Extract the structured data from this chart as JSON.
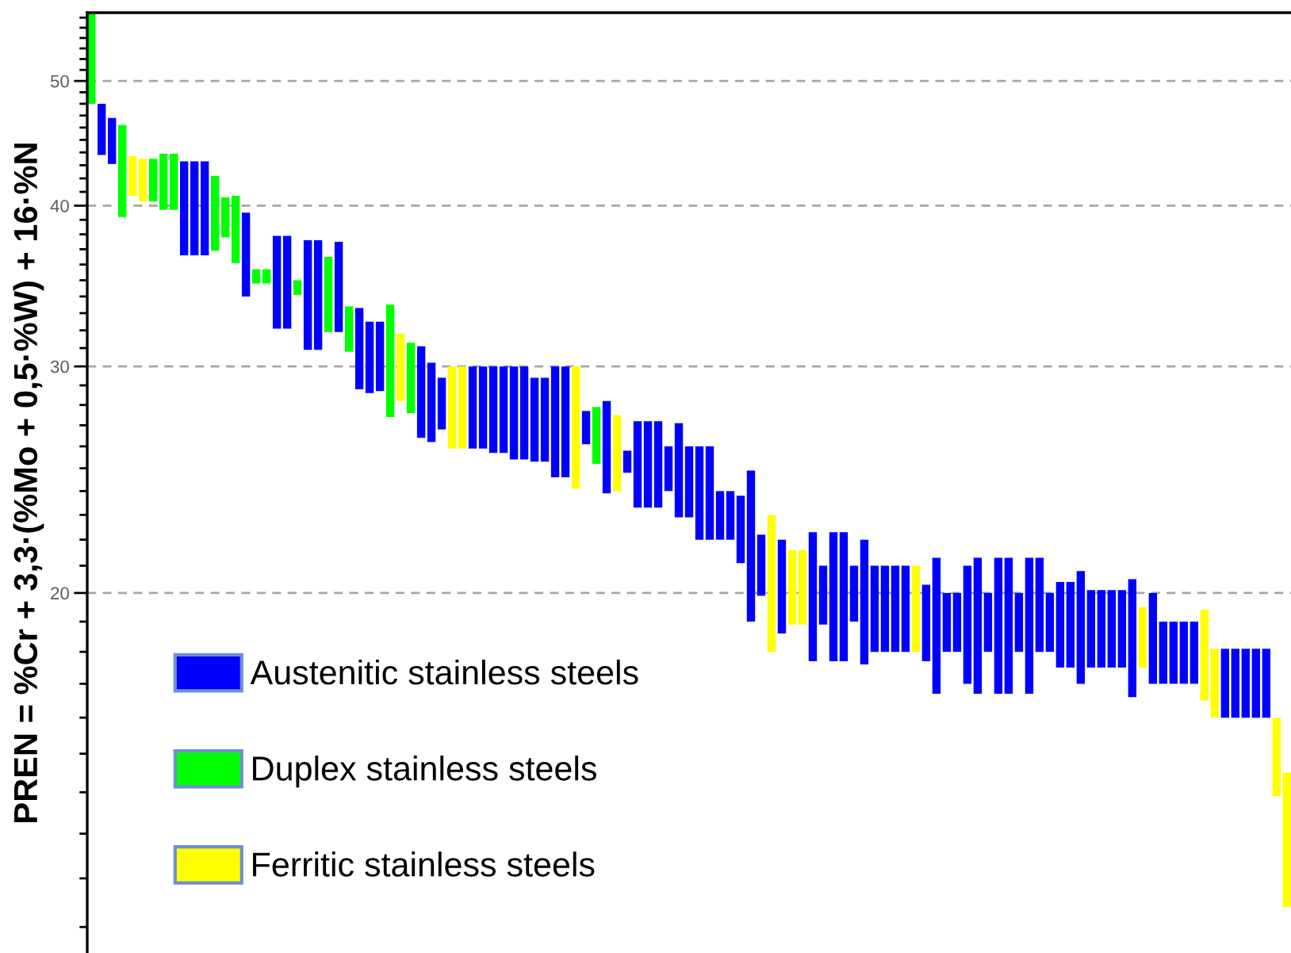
{
  "chart_data": {
    "type": "bar",
    "ylabel": "PREN = %Cr + 3,3·(%Mo + 0,5·%W) + 16·%N",
    "categories": [
      null,
      null,
      null,
      null,
      null,
      null,
      null,
      null,
      null,
      null,
      null,
      null,
      null,
      null,
      null,
      null,
      null,
      null,
      null,
      null,
      null,
      null,
      null,
      null,
      null,
      null,
      null,
      null,
      null,
      null,
      null,
      null,
      null,
      null,
      null,
      null,
      null,
      null,
      null,
      null,
      null,
      null,
      null,
      null,
      null,
      null,
      null,
      null,
      null,
      null,
      null,
      null,
      null,
      null,
      null,
      null,
      null,
      null,
      null,
      null,
      null,
      null,
      null,
      null,
      null,
      null,
      null,
      null,
      null,
      null,
      null,
      null,
      null,
      null,
      null,
      null,
      null,
      null,
      null,
      null,
      null,
      null,
      null,
      null,
      null,
      null,
      null,
      null,
      null,
      null,
      null,
      null,
      null,
      null,
      null,
      null,
      null,
      null,
      null,
      null,
      null,
      null,
      null,
      null,
      null,
      null,
      null,
      null,
      null,
      null,
      null,
      null,
      null,
      null,
      null,
      null,
      null
    ],
    "series": [
      {
        "name": "Austenitic stainless steels",
        "color": "#0000ff",
        "values": [
          null,
          4.2,
          3.7,
          null,
          null,
          null,
          null,
          null,
          null,
          6.7,
          6.7,
          6.7,
          null,
          null,
          null,
          5.5,
          null,
          null,
          5.8,
          5.8,
          null,
          6.7,
          6.7,
          null,
          5.6,
          null,
          4.5,
          3.9,
          3.8,
          null,
          null,
          null,
          4.7,
          4.0,
          2.6,
          null,
          null,
          4.1,
          4.1,
          4.3,
          4.3,
          4.6,
          4.6,
          4.1,
          4.1,
          5.4,
          5.4,
          null,
          1.6,
          null,
          4.3,
          null,
          1.0,
          3.9,
          3.9,
          3.9,
          2.0,
          4.2,
          3.1,
          4.0,
          4.0,
          2.0,
          2.0,
          2.7,
          5.9,
          2.3,
          null,
          3.4,
          null,
          null,
          4.6,
          2.1,
          4.6,
          4.6,
          2.0,
          4.4,
          3.0,
          3.0,
          3.0,
          3.0,
          null,
          2.6,
          4.6,
          2.0,
          2.0,
          4.0,
          4.6,
          2.0,
          4.6,
          4.6,
          2.0,
          4.6,
          3.3,
          2.0,
          2.9,
          2.9,
          3.8,
          2.6,
          2.6,
          2.6,
          2.6,
          3.9,
          null,
          3.0,
          2.0,
          2.0,
          2.0,
          2.0,
          null,
          null,
          2.1,
          2.1,
          2.1,
          2.1,
          2.1,
          null,
          null
        ],
        "base": [
          null,
          43.8,
          43.1,
          null,
          null,
          null,
          null,
          null,
          null,
          36.6,
          36.6,
          36.6,
          null,
          null,
          null,
          34.0,
          null,
          null,
          32.1,
          32.1,
          null,
          30.9,
          30.9,
          null,
          31.9,
          null,
          28.8,
          28.6,
          28.7,
          null,
          null,
          null,
          26.4,
          26.2,
          26.8,
          null,
          null,
          25.9,
          25.9,
          25.7,
          25.7,
          25.4,
          25.4,
          25.3,
          25.3,
          24.6,
          24.6,
          null,
          26.1,
          null,
          23.9,
          null,
          24.8,
          23.3,
          23.3,
          23.3,
          24.0,
          22.9,
          22.9,
          22.0,
          22.0,
          22.0,
          22.0,
          21.1,
          19.0,
          19.9,
          null,
          18.6,
          null,
          null,
          17.7,
          18.9,
          17.7,
          17.7,
          19.0,
          17.6,
          18.0,
          18.0,
          18.0,
          18.0,
          null,
          17.7,
          16.7,
          18.0,
          18.0,
          17.0,
          16.7,
          18.0,
          16.7,
          16.7,
          18.0,
          16.7,
          18.0,
          18.0,
          17.5,
          17.5,
          17.0,
          17.5,
          17.5,
          17.5,
          17.5,
          16.6,
          null,
          17.0,
          17.0,
          17.0,
          17.0,
          17.0,
          null,
          null,
          16.0,
          16.0,
          16.0,
          16.0,
          16.0,
          null,
          null
        ]
      },
      {
        "name": "Duplex stainless steels",
        "color": "#00ff00",
        "values": [
          8.5,
          null,
          null,
          7.0,
          null,
          null,
          3.2,
          4.2,
          4.2,
          null,
          null,
          null,
          5.3,
          2.8,
          4.6,
          null,
          0.9,
          0.9,
          null,
          null,
          0.9,
          null,
          null,
          4.6,
          null,
          2.6,
          null,
          null,
          null,
          6.1,
          null,
          3.7,
          null,
          null,
          null,
          null,
          null,
          null,
          null,
          null,
          null,
          null,
          null,
          null,
          null,
          null,
          null,
          null,
          null,
          2.7,
          null,
          null,
          null,
          null,
          null,
          null,
          null,
          null,
          null,
          null,
          null,
          null,
          null,
          null,
          null,
          null,
          null,
          null,
          null,
          null,
          null,
          null,
          null,
          null,
          null,
          null,
          null,
          null,
          null,
          null,
          null,
          null,
          null,
          null,
          null,
          null,
          null,
          null,
          null,
          null,
          null,
          null,
          null,
          null,
          null,
          null,
          null,
          null,
          null,
          null,
          null,
          null,
          null,
          null,
          null,
          null,
          null,
          null,
          null,
          null,
          null,
          null,
          null,
          null,
          null,
          null,
          null
        ],
        "base": [
          48.0,
          null,
          null,
          39.2,
          null,
          null,
          40.3,
          39.7,
          39.7,
          null,
          null,
          null,
          36.9,
          37.8,
          36.1,
          null,
          34.8,
          34.8,
          null,
          null,
          34.1,
          null,
          null,
          31.9,
          null,
          30.8,
          null,
          null,
          null,
          27.4,
          null,
          27.6,
          null,
          null,
          null,
          null,
          null,
          null,
          null,
          null,
          null,
          null,
          null,
          null,
          null,
          null,
          null,
          null,
          null,
          25.2,
          null,
          null,
          null,
          null,
          null,
          null,
          null,
          null,
          null,
          null,
          null,
          null,
          null,
          null,
          null,
          null,
          null,
          null,
          null,
          null,
          null,
          null,
          null,
          null,
          null,
          null,
          null,
          null,
          null,
          null,
          null,
          null,
          null,
          null,
          null,
          null,
          null,
          null,
          null,
          null,
          null,
          null,
          null,
          null,
          null,
          null,
          null,
          null,
          null,
          null,
          null,
          null,
          null,
          null,
          null,
          null,
          null,
          null,
          null,
          null,
          null,
          null,
          null,
          null,
          null,
          null,
          null
        ]
      },
      {
        "name": "Ferritic stainless steels",
        "color": "#ffff00",
        "values": [
          null,
          null,
          null,
          null,
          3.0,
          3.2,
          null,
          null,
          null,
          null,
          null,
          null,
          null,
          null,
          null,
          null,
          null,
          null,
          null,
          null,
          null,
          null,
          null,
          null,
          null,
          null,
          null,
          null,
          null,
          null,
          3.6,
          null,
          null,
          null,
          null,
          4.1,
          4.1,
          null,
          null,
          null,
          null,
          null,
          null,
          null,
          null,
          null,
          null,
          5.9,
          null,
          null,
          null,
          3.5,
          null,
          null,
          null,
          null,
          null,
          null,
          null,
          null,
          null,
          null,
          null,
          null,
          null,
          null,
          5.0,
          null,
          2.7,
          2.7,
          null,
          null,
          null,
          null,
          null,
          null,
          null,
          null,
          null,
          null,
          3.0,
          null,
          null,
          null,
          null,
          null,
          null,
          null,
          null,
          null,
          null,
          null,
          null,
          null,
          null,
          null,
          null,
          null,
          null,
          null,
          null,
          null,
          2.0,
          null,
          null,
          null,
          null,
          null,
          2.9,
          2.1,
          null,
          null,
          null,
          null,
          null,
          2.1,
          3.1
        ],
        "base": [
          null,
          null,
          null,
          null,
          40.7,
          40.3,
          null,
          null,
          null,
          null,
          null,
          null,
          null,
          null,
          null,
          null,
          null,
          null,
          null,
          null,
          null,
          null,
          null,
          null,
          null,
          null,
          null,
          null,
          null,
          null,
          28.2,
          null,
          null,
          null,
          null,
          25.9,
          25.9,
          null,
          null,
          null,
          null,
          null,
          null,
          null,
          null,
          null,
          null,
          24.1,
          null,
          null,
          null,
          24.0,
          null,
          null,
          null,
          null,
          null,
          null,
          null,
          null,
          null,
          null,
          null,
          null,
          null,
          null,
          18.0,
          null,
          18.9,
          18.9,
          null,
          null,
          null,
          null,
          null,
          null,
          null,
          null,
          null,
          null,
          18.0,
          null,
          null,
          null,
          null,
          null,
          null,
          null,
          null,
          null,
          null,
          null,
          null,
          null,
          null,
          null,
          null,
          null,
          null,
          null,
          null,
          null,
          17.5,
          null,
          null,
          null,
          null,
          null,
          16.5,
          16.0,
          null,
          null,
          null,
          null,
          null,
          13.9,
          11.4
        ]
      }
    ],
    "log": true,
    "ylim": [
      10.5,
      56.5
    ],
    "yticks": [
      {
        "value": 11,
        "label": null
      },
      {
        "value": 12,
        "label": null
      },
      {
        "value": 13,
        "label": null
      },
      {
        "value": 14,
        "label": null
      },
      {
        "value": 15,
        "label": null
      },
      {
        "value": 16,
        "label": null
      },
      {
        "value": 17,
        "label": null
      },
      {
        "value": 18,
        "label": null
      },
      {
        "value": 19,
        "label": null
      },
      20,
      {
        "value": 21,
        "label": null
      },
      {
        "value": 22,
        "label": null
      },
      {
        "value": 23,
        "label": null
      },
      {
        "value": 24,
        "label": null
      },
      {
        "value": 25,
        "label": null
      },
      {
        "value": 26,
        "label": null
      },
      {
        "value": 27,
        "label": null
      },
      {
        "value": 28,
        "label": null
      },
      {
        "value": 29,
        "label": null
      },
      30,
      {
        "value": 31,
        "label": null
      },
      {
        "value": 32,
        "label": null
      },
      {
        "value": 33,
        "label": null
      },
      {
        "value": 34,
        "label": null
      },
      {
        "value": 35,
        "label": null
      },
      {
        "value": 36,
        "label": null
      },
      {
        "value": 37,
        "label": null
      },
      {
        "value": 38,
        "label": null
      },
      {
        "value": 39,
        "label": null
      },
      40,
      {
        "value": 41,
        "label": null
      },
      {
        "value": 42,
        "label": null
      },
      {
        "value": 43,
        "label": null
      },
      {
        "value": 44,
        "label": null
      },
      {
        "value": 45,
        "label": null
      },
      {
        "value": 46,
        "label": null
      },
      {
        "value": 47,
        "label": null
      },
      {
        "value": 48,
        "label": null
      },
      {
        "value": 49,
        "label": null
      },
      50,
      {
        "value": 51,
        "label": null
      },
      {
        "value": 52,
        "label": null
      },
      {
        "value": 53,
        "label": null
      },
      {
        "value": 54,
        "label": null
      },
      {
        "value": 55,
        "label": null
      },
      {
        "value": 56,
        "label": null
      }
    ],
    "grid": "y",
    "legend": "bottom left",
    "tick_labels": "y"
  }
}
